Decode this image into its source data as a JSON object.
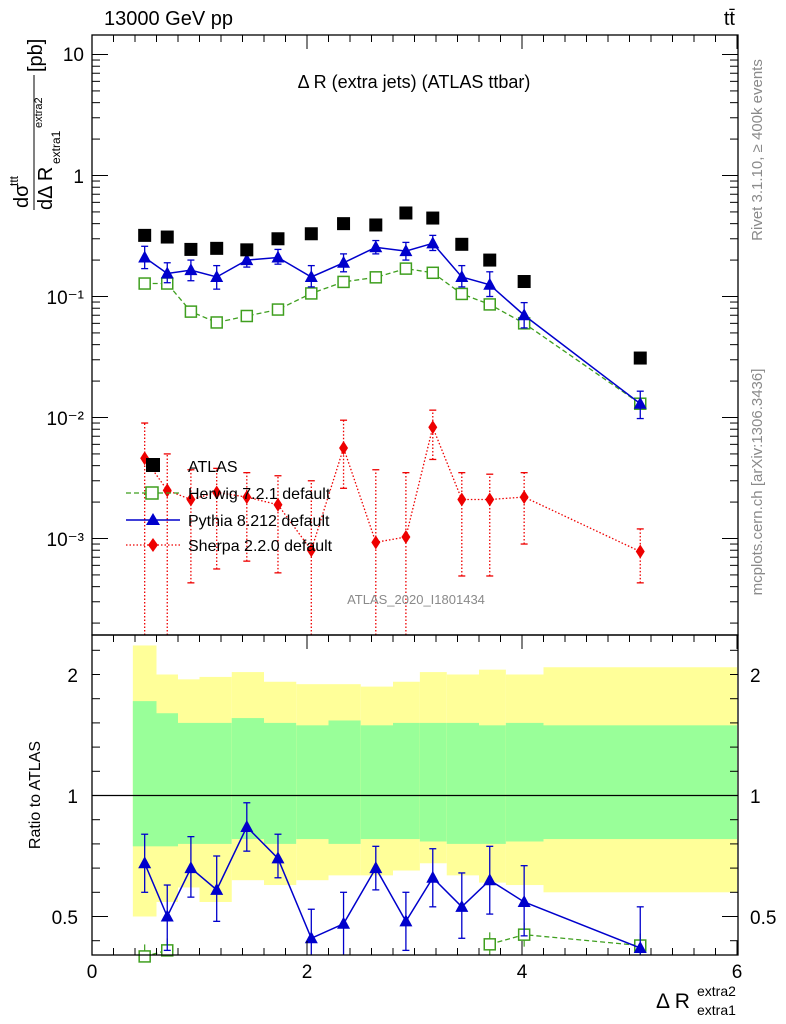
{
  "header": {
    "left": "13000 GeV pp",
    "right": "tt̄"
  },
  "side_labels": {
    "top": "Rivet 3.1.10, ≥ 400k events",
    "bottom": "mcplots.cern.ch [arXiv:1306.3436]"
  },
  "watermark": "ATLAS_2020_I1801434",
  "chart_data": {
    "type": "scatter",
    "title": "Δ R (extra jets) (ATLAS ttbar)",
    "main_panel": {
      "yscale": "log",
      "ylim": [
        0.00015,
        15
      ],
      "ylabel": "dσttt / dΔ R extra1 extra2 [pb]",
      "ytick_labels": [
        "10",
        "1",
        "10⁻¹",
        "10⁻²",
        "10⁻³"
      ]
    },
    "ratio_panel": {
      "ylabel": "Ratio to ATLAS",
      "ylim": [
        0.35,
        2.35
      ],
      "ytick_labels": [
        "0.5",
        "1",
        "2"
      ]
    },
    "xlim": [
      0,
      6
    ],
    "xtick_labels": [
      "0",
      "2",
      "4",
      "6"
    ],
    "xlabel": "Δ R extra1 extra2",
    "x": [
      0.49,
      0.7,
      0.92,
      1.16,
      1.44,
      1.73,
      2.04,
      2.34,
      2.64,
      2.92,
      3.17,
      3.44,
      3.7,
      4.02,
      5.1
    ],
    "uncertainty_bands": {
      "edges": [
        0.38,
        0.6,
        0.8,
        1.0,
        1.3,
        1.6,
        1.9,
        2.2,
        2.5,
        2.8,
        3.05,
        3.3,
        3.6,
        3.85,
        4.2,
        6.0
      ],
      "inner": [
        [
          0.79,
          1.39
        ],
        [
          0.79,
          1.34
        ],
        [
          0.8,
          1.3
        ],
        [
          0.8,
          1.3
        ],
        [
          0.82,
          1.32
        ],
        [
          0.8,
          1.3
        ],
        [
          0.82,
          1.29
        ],
        [
          0.8,
          1.31
        ],
        [
          0.82,
          1.29
        ],
        [
          0.82,
          1.3
        ],
        [
          0.81,
          1.3
        ],
        [
          0.8,
          1.3
        ],
        [
          0.8,
          1.29
        ],
        [
          0.81,
          1.3
        ],
        [
          0.82,
          1.29
        ]
      ],
      "outer": [
        [
          0.5,
          1.62
        ],
        [
          0.56,
          1.5
        ],
        [
          0.62,
          1.48
        ],
        [
          0.56,
          1.49
        ],
        [
          0.65,
          1.51
        ],
        [
          0.63,
          1.47
        ],
        [
          0.65,
          1.46
        ],
        [
          0.67,
          1.46
        ],
        [
          0.67,
          1.45
        ],
        [
          0.69,
          1.47
        ],
        [
          0.72,
          1.51
        ],
        [
          0.67,
          1.5
        ],
        [
          0.64,
          1.52
        ],
        [
          0.63,
          1.5
        ],
        [
          0.6,
          1.53
        ]
      ],
      "colors": {
        "inner": "#99ff99",
        "outer": "#ffff99"
      }
    },
    "series": [
      {
        "name": "ATLAS",
        "color": "#000000",
        "marker": "square",
        "values": [
          0.32,
          0.31,
          0.245,
          0.25,
          0.243,
          0.3,
          0.33,
          0.4,
          0.39,
          0.49,
          0.445,
          0.27,
          0.2,
          0.133,
          0.031
        ],
        "ratio": [
          1,
          1,
          1,
          1,
          1,
          1,
          1,
          1,
          1,
          1,
          1,
          1,
          1,
          1,
          1
        ]
      },
      {
        "name": "Herwig 7.2.1 default",
        "color": "#3f9f1f",
        "marker": "open-square",
        "line": "dashed",
        "values": [
          0.128,
          0.128,
          0.075,
          0.061,
          0.069,
          0.078,
          0.106,
          0.132,
          0.144,
          0.17,
          0.157,
          0.105,
          0.086,
          0.06,
          0.013
        ],
        "ratio": [
          0.335,
          0.36,
          null,
          null,
          null,
          null,
          null,
          null,
          null,
          null,
          null,
          null,
          0.385,
          0.425,
          0.38
        ]
      },
      {
        "name": "Pythia 8.212 default",
        "color": "#0000cc",
        "marker": "triangle",
        "line": "solid",
        "values": [
          0.21,
          0.155,
          0.165,
          0.145,
          0.2,
          0.21,
          0.145,
          0.19,
          0.255,
          0.237,
          0.275,
          0.145,
          0.125,
          0.07,
          0.013
        ],
        "errors": [
          [
            0.17,
            0.26
          ],
          [
            0.13,
            0.19
          ],
          [
            0.135,
            0.2
          ],
          [
            0.115,
            0.18
          ],
          [
            0.175,
            0.23
          ],
          [
            0.185,
            0.245
          ],
          [
            0.12,
            0.18
          ],
          [
            0.16,
            0.225
          ],
          [
            0.225,
            0.29
          ],
          [
            0.2,
            0.28
          ],
          [
            0.24,
            0.32
          ],
          [
            0.12,
            0.18
          ],
          [
            0.1,
            0.16
          ],
          [
            0.055,
            0.089
          ],
          [
            0.0098,
            0.0165
          ]
        ],
        "ratio": [
          0.72,
          0.5,
          0.7,
          0.61,
          0.87,
          0.74,
          0.41,
          0.47,
          0.7,
          0.48,
          0.66,
          0.54,
          0.65,
          0.56,
          0.37
        ],
        "ratio_errors": [
          [
            0.6,
            0.84
          ],
          [
            0.36,
            0.63
          ],
          [
            0.58,
            0.83
          ],
          [
            0.48,
            0.75
          ],
          [
            0.77,
            0.97
          ],
          [
            0.66,
            0.84
          ],
          [
            0.3,
            0.53
          ],
          [
            0.34,
            0.6
          ],
          [
            0.61,
            0.79
          ],
          [
            0.36,
            0.6
          ],
          [
            0.54,
            0.78
          ],
          [
            0.41,
            0.68
          ],
          [
            0.51,
            0.79
          ],
          [
            0.42,
            0.71
          ],
          [
            0.2,
            0.54
          ]
        ]
      },
      {
        "name": "Sherpa 2.2.0 default",
        "color": "#ee0000",
        "marker": "diamond",
        "line": "dotted",
        "values": [
          0.0046,
          0.0025,
          0.0021,
          0.0024,
          0.0022,
          0.0019,
          0.0008,
          0.0056,
          0.00093,
          0.00103,
          0.0083,
          0.0021,
          0.0021,
          0.0022,
          0.00078
        ],
        "errors": [
          [
            0.0001,
            0.009
          ],
          [
            0.0001,
            0.005
          ],
          [
            0.00043,
            0.0037
          ],
          [
            0.00056,
            0.0038
          ],
          [
            0.00065,
            0.0035
          ],
          [
            0.00052,
            0.0033
          ],
          [
            0.0001,
            0.003
          ],
          [
            0.0026,
            0.0095
          ],
          [
            0.0001,
            0.0037
          ],
          [
            0.0001,
            0.0035
          ],
          [
            0.0045,
            0.0115
          ],
          [
            0.00049,
            0.0035
          ],
          [
            0.00049,
            0.0034
          ],
          [
            0.0009,
            0.0035
          ],
          [
            0.00043,
            0.0012
          ]
        ]
      }
    ]
  }
}
